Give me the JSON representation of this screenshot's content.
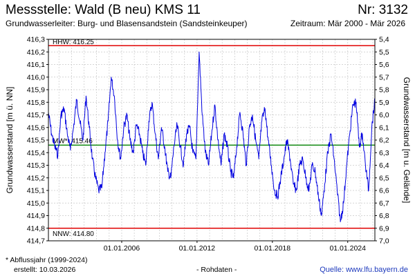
{
  "header": {
    "title": "Messstelle: Wald (B neu) KMS 11",
    "nr": "Nr: 3132",
    "aquifer": "Grundwasserleiter:   Burg- und Blasensandstein (Sandsteinkeuper)",
    "period": "Zeitraum: Mär 2000 - Mär 2026"
  },
  "footer": {
    "footnote": "* Abflussjahr (1999-2024)",
    "created": "erstellt:  10.03.2026",
    "rawdata": "- Rohdaten -",
    "source": "Quelle: www.lfu.bayern.de"
  },
  "colors": {
    "series": "#0000e0",
    "extreme_lines": "#e00000",
    "mean_line": "#008000",
    "grid": "#c8c8c8",
    "source_link": "#1f3bbd"
  },
  "chart_data": {
    "type": "line",
    "title": "",
    "ylabel": "Grundwasserstand [m ü. NN]",
    "y2label": "Grundwasserstand [m u. Gelände]",
    "xlabel": "",
    "xlim": [
      "2000-03-01",
      "2026-03-01"
    ],
    "ylim": [
      414.7,
      416.3
    ],
    "y2lim": [
      5.4,
      7.0
    ],
    "y_ticks": [
      "416,3",
      "416,2",
      "416,1",
      "416,0",
      "415,9",
      "415,8",
      "415,7",
      "415,6",
      "415,5",
      "415,4",
      "415,3",
      "415,2",
      "415,1",
      "415,0",
      "414,9",
      "414,8",
      "414,7"
    ],
    "y2_ticks": [
      "5,4",
      "5,5",
      "5,6",
      "5,7",
      "5,8",
      "5,9",
      "6,0",
      "6,1",
      "6,2",
      "6,3",
      "6,4",
      "6,5",
      "6,6",
      "6,7",
      "6,8",
      "6,9",
      "7,0"
    ],
    "x_ticks": [
      {
        "date": "2006-01-01",
        "label": "01.01.2006"
      },
      {
        "date": "2012-01-01",
        "label": "01.01.2012"
      },
      {
        "date": "2018-01-01",
        "label": "01.01.2018"
      },
      {
        "date": "2024-01-01",
        "label": "01.01.2024"
      }
    ],
    "grid": true,
    "reference_lines": [
      {
        "label": "HHW: 416.25",
        "value": 416.25,
        "kind": "extreme"
      },
      {
        "label": "MW*: 415.46",
        "value": 415.46,
        "kind": "mean"
      },
      {
        "label": "NNW: 414.80",
        "value": 414.8,
        "kind": "extreme"
      }
    ],
    "series": [
      {
        "x": [
          "2000-03-01",
          "2000-06-01",
          "2000-09-01",
          "2000-12-01",
          "2001-03-01",
          "2001-06-01",
          "2001-09-01",
          "2001-12-01",
          "2002-03-01",
          "2002-06-01",
          "2002-09-01",
          "2002-12-01",
          "2003-03-01",
          "2003-06-01",
          "2003-09-01",
          "2003-12-01",
          "2004-03-01",
          "2004-06-01",
          "2004-09-01",
          "2004-12-01",
          "2005-03-01",
          "2005-06-01",
          "2005-09-01",
          "2005-12-01",
          "2006-03-01",
          "2006-06-01",
          "2006-09-01",
          "2006-12-01",
          "2007-03-01",
          "2007-06-01",
          "2007-09-01",
          "2007-12-01",
          "2008-03-01",
          "2008-06-01",
          "2008-09-01",
          "2008-12-01",
          "2009-03-01",
          "2009-06-01",
          "2009-09-01",
          "2009-12-01",
          "2010-03-01",
          "2010-06-01",
          "2010-09-01",
          "2010-12-01",
          "2011-03-01",
          "2011-06-01",
          "2011-09-01",
          "2011-12-01",
          "2012-03-01",
          "2012-06-01",
          "2012-09-01",
          "2012-12-01",
          "2013-03-01",
          "2013-06-01",
          "2013-09-01",
          "2013-12-01",
          "2014-03-01",
          "2014-06-01",
          "2014-09-01",
          "2014-12-01",
          "2015-03-01",
          "2015-06-01",
          "2015-09-01",
          "2015-12-01",
          "2016-03-01",
          "2016-06-01",
          "2016-09-01",
          "2016-12-01",
          "2017-03-01",
          "2017-06-01",
          "2017-09-01",
          "2017-12-01",
          "2018-03-01",
          "2018-06-01",
          "2018-09-01",
          "2018-12-01",
          "2019-03-01",
          "2019-06-01",
          "2019-09-01",
          "2019-12-01",
          "2020-03-01",
          "2020-06-01",
          "2020-09-01",
          "2020-12-01",
          "2021-03-01",
          "2021-06-01",
          "2021-09-01",
          "2021-12-01",
          "2022-03-01",
          "2022-06-01",
          "2022-09-01",
          "2022-12-01",
          "2023-03-01",
          "2023-06-01",
          "2023-09-01",
          "2023-12-01",
          "2024-03-01",
          "2024-06-01",
          "2024-09-01",
          "2024-12-01",
          "2025-03-01",
          "2025-06-01",
          "2025-09-01",
          "2025-12-01",
          "2026-03-01"
        ],
        "values": [
          415.72,
          415.55,
          415.45,
          415.38,
          415.7,
          415.75,
          415.55,
          415.42,
          415.6,
          415.82,
          415.65,
          415.5,
          415.85,
          415.6,
          415.35,
          415.2,
          415.1,
          415.12,
          415.4,
          415.65,
          416.0,
          415.85,
          415.5,
          415.35,
          415.6,
          415.7,
          415.5,
          415.4,
          415.62,
          415.55,
          415.4,
          415.3,
          415.65,
          415.8,
          415.55,
          415.35,
          415.6,
          415.45,
          415.25,
          415.2,
          415.45,
          415.62,
          415.45,
          415.3,
          415.55,
          415.6,
          415.4,
          415.35,
          416.2,
          415.7,
          415.4,
          415.3,
          415.55,
          415.78,
          415.5,
          415.3,
          415.55,
          415.45,
          415.25,
          415.2,
          415.45,
          415.72,
          415.55,
          415.3,
          415.6,
          415.7,
          415.5,
          415.35,
          415.65,
          415.75,
          415.5,
          415.3,
          415.1,
          415.05,
          415.2,
          415.35,
          415.5,
          415.35,
          415.15,
          415.1,
          415.3,
          415.35,
          415.2,
          415.1,
          415.3,
          415.25,
          415.05,
          414.9,
          415.15,
          415.4,
          415.55,
          415.35,
          415.1,
          414.85,
          415.0,
          415.3,
          415.55,
          415.78,
          415.8,
          415.45,
          415.55,
          415.3,
          415.1,
          415.6,
          415.82
        ]
      }
    ]
  }
}
